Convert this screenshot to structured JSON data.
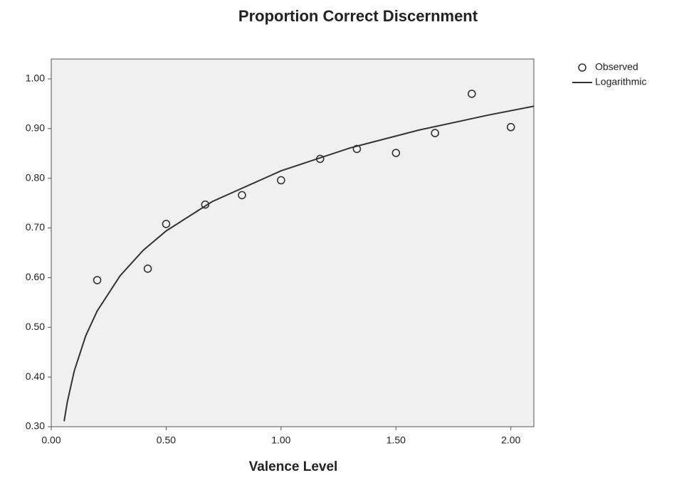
{
  "chart_data": {
    "type": "scatter",
    "title": "Proportion Correct Discernment",
    "xlabel": "Valence Level",
    "xlim": [
      0,
      2.1
    ],
    "ylim": [
      0.3,
      1.04
    ],
    "xticks": [
      {
        "value": 0,
        "label": "0.00"
      },
      {
        "value": 0.5,
        "label": "0.50"
      },
      {
        "value": 1,
        "label": "1.00"
      },
      {
        "value": 1.5,
        "label": "1.50"
      },
      {
        "value": 2,
        "label": "2.00"
      }
    ],
    "yticks": [
      {
        "value": 0.3,
        "label": "0.30"
      },
      {
        "value": 0.4,
        "label": "0.40"
      },
      {
        "value": 0.5,
        "label": "0.50"
      },
      {
        "value": 0.6,
        "label": "0.60"
      },
      {
        "value": 0.7,
        "label": "0.70"
      },
      {
        "value": 0.8,
        "label": "0.80"
      },
      {
        "value": 0.9,
        "label": "0.90"
      },
      {
        "value": 1.0,
        "label": "1.00"
      }
    ],
    "grid": false,
    "legend": "right",
    "series": [
      {
        "name": "Observed",
        "style": "marker",
        "color": "#333333",
        "x": [
          0.2,
          0.42,
          0.5,
          0.67,
          0.83,
          1.0,
          1.17,
          1.33,
          1.5,
          1.67,
          1.83,
          2.0
        ],
        "values": [
          0.595,
          0.618,
          0.708,
          0.747,
          0.766,
          0.796,
          0.839,
          0.859,
          0.851,
          0.891,
          0.97,
          0.903
        ]
      },
      {
        "name": "Logarithmic",
        "style": "line",
        "color": "#333333",
        "x": [
          0.056,
          0.07,
          0.1,
          0.15,
          0.2,
          0.3,
          0.4,
          0.5,
          0.7,
          1.0,
          1.3,
          1.6,
          1.9,
          2.1
        ],
        "values": [
          0.311,
          0.35,
          0.412,
          0.483,
          0.533,
          0.604,
          0.655,
          0.694,
          0.753,
          0.815,
          0.861,
          0.897,
          0.927,
          0.945
        ]
      }
    ]
  }
}
